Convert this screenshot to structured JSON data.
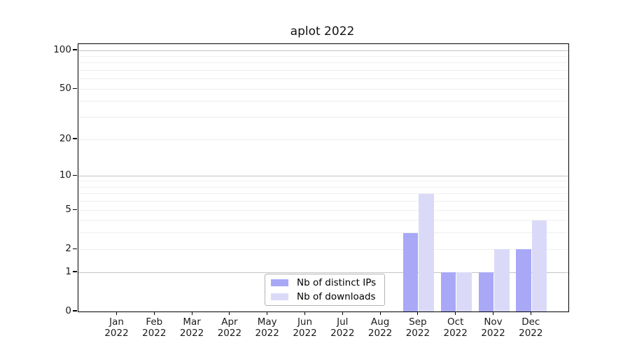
{
  "title": "aplot 2022",
  "chart_data": {
    "type": "bar",
    "title": "aplot 2022",
    "categories": [
      "Jan",
      "Feb",
      "Mar",
      "Apr",
      "May",
      "Jun",
      "Jul",
      "Aug",
      "Sep",
      "Oct",
      "Nov",
      "Dec"
    ],
    "category_year": "2022",
    "series": [
      {
        "name": "Nb of distinct IPs",
        "color": "#a8a8f7",
        "values": [
          0,
          0,
          0,
          0,
          0,
          0,
          0,
          0,
          3,
          1,
          1,
          2
        ]
      },
      {
        "name": "Nb of downloads",
        "color": "#dadaf8",
        "values": [
          0,
          0,
          0,
          0,
          0,
          0,
          0,
          0,
          7,
          1,
          2,
          4
        ]
      }
    ],
    "xlabel": "",
    "ylabel": "",
    "yscale": "log1p",
    "ylim": [
      0,
      112
    ],
    "yticks": [
      0,
      1,
      2,
      5,
      10,
      20,
      50,
      100
    ],
    "major_gridlines": [
      1,
      10,
      100
    ],
    "minor_gridlines": [
      2,
      3,
      4,
      5,
      6,
      7,
      8,
      9,
      20,
      30,
      40,
      50,
      60,
      70,
      80,
      90
    ],
    "grid": true,
    "legend_position": "lower center"
  },
  "colors": {
    "background": "#ffffff",
    "spine": "#000000",
    "text": "#1a1a1a",
    "grid_major": "#c4c4c4",
    "grid_minor": "#efefef",
    "legend_border": "#b3b3b3",
    "bar_distinct_ips": "#a8a8f7",
    "bar_downloads": "#dadaf8"
  }
}
